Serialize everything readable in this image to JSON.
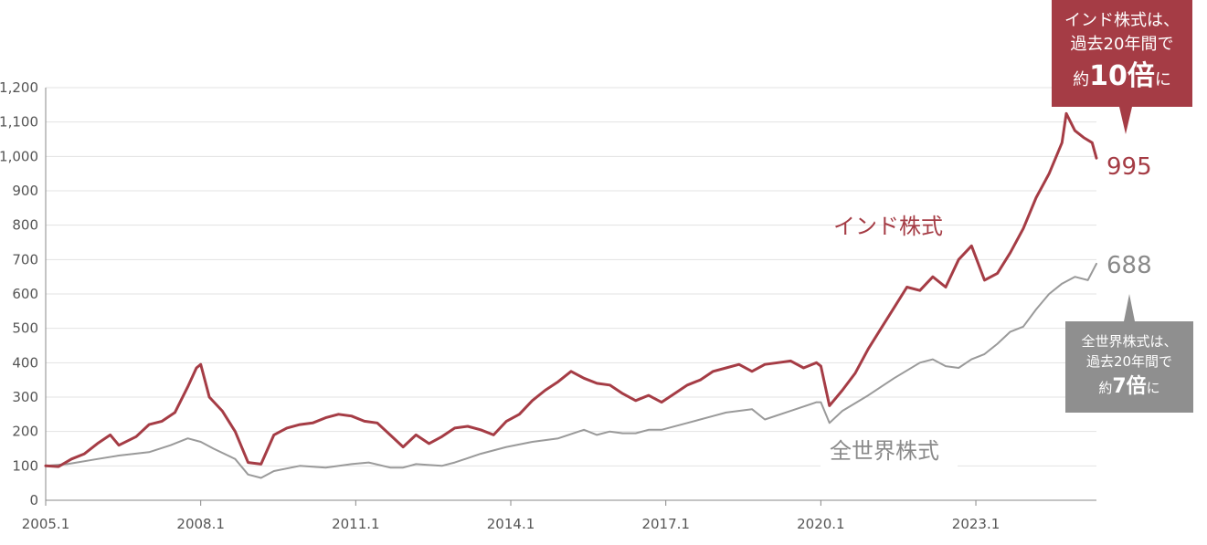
{
  "chart_data": {
    "type": "line",
    "ylim": [
      0,
      1200
    ],
    "y_ticks": [
      "0",
      "100",
      "200",
      "300",
      "400",
      "500",
      "600",
      "700",
      "800",
      "900",
      "1,000",
      "1,100",
      "1,200"
    ],
    "x_ticks": [
      "2005.1",
      "2008.1",
      "2011.1",
      "2014.1",
      "2017.1",
      "2020.1",
      "2023.1"
    ],
    "grid": "horizontal",
    "series": [
      {
        "name": "インド株式",
        "color": "#a53c45",
        "end_label": "995",
        "points": [
          [
            "2005.1",
            100
          ],
          [
            "2005.4",
            98
          ],
          [
            "2005.7",
            120
          ],
          [
            "2005.10",
            135
          ],
          [
            "2006.1",
            165
          ],
          [
            "2006.4",
            190
          ],
          [
            "2006.6",
            160
          ],
          [
            "2006.10",
            185
          ],
          [
            "2007.1",
            220
          ],
          [
            "2007.4",
            230
          ],
          [
            "2007.7",
            255
          ],
          [
            "2007.10",
            330
          ],
          [
            "2007.12",
            385
          ],
          [
            "2008.1",
            395
          ],
          [
            "2008.3",
            300
          ],
          [
            "2008.6",
            260
          ],
          [
            "2008.9",
            200
          ],
          [
            "2008.12",
            110
          ],
          [
            "2009.3",
            105
          ],
          [
            "2009.6",
            190
          ],
          [
            "2009.9",
            210
          ],
          [
            "2009.12",
            220
          ],
          [
            "2010.3",
            225
          ],
          [
            "2010.6",
            240
          ],
          [
            "2010.9",
            250
          ],
          [
            "2010.12",
            245
          ],
          [
            "2011.3",
            230
          ],
          [
            "2011.6",
            225
          ],
          [
            "2011.9",
            190
          ],
          [
            "2011.12",
            155
          ],
          [
            "2012.3",
            190
          ],
          [
            "2012.6",
            165
          ],
          [
            "2012.9",
            185
          ],
          [
            "2012.12",
            210
          ],
          [
            "2013.3",
            215
          ],
          [
            "2013.6",
            205
          ],
          [
            "2013.9",
            190
          ],
          [
            "2013.12",
            230
          ],
          [
            "2014.3",
            250
          ],
          [
            "2014.6",
            290
          ],
          [
            "2014.9",
            320
          ],
          [
            "2014.12",
            345
          ],
          [
            "2015.3",
            375
          ],
          [
            "2015.6",
            355
          ],
          [
            "2015.9",
            340
          ],
          [
            "2015.12",
            335
          ],
          [
            "2016.3",
            310
          ],
          [
            "2016.6",
            290
          ],
          [
            "2016.9",
            305
          ],
          [
            "2016.12",
            285
          ],
          [
            "2017.3",
            310
          ],
          [
            "2017.6",
            335
          ],
          [
            "2017.9",
            350
          ],
          [
            "2017.12",
            375
          ],
          [
            "2018.3",
            385
          ],
          [
            "2018.6",
            395
          ],
          [
            "2018.9",
            375
          ],
          [
            "2018.12",
            395
          ],
          [
            "2019.3",
            400
          ],
          [
            "2019.6",
            405
          ],
          [
            "2019.9",
            385
          ],
          [
            "2019.12",
            400
          ],
          [
            "2020.1",
            390
          ],
          [
            "2020.3",
            275
          ],
          [
            "2020.6",
            320
          ],
          [
            "2020.9",
            370
          ],
          [
            "2020.12",
            440
          ],
          [
            "2021.3",
            500
          ],
          [
            "2021.6",
            560
          ],
          [
            "2021.9",
            620
          ],
          [
            "2021.12",
            610
          ],
          [
            "2022.3",
            650
          ],
          [
            "2022.6",
            620
          ],
          [
            "2022.9",
            700
          ],
          [
            "2022.12",
            740
          ],
          [
            "2023.3",
            640
          ],
          [
            "2023.6",
            660
          ],
          [
            "2023.9",
            720
          ],
          [
            "2023.12",
            790
          ],
          [
            "2024.3",
            880
          ],
          [
            "2024.6",
            950
          ],
          [
            "2024.9",
            1040
          ],
          [
            "2024.10",
            1125
          ],
          [
            "2024.12",
            1075
          ],
          [
            "2025.2",
            1055
          ],
          [
            "2025.4",
            1040
          ],
          [
            "2025.5",
            995
          ]
        ]
      },
      {
        "name": "全世界株式",
        "color": "#9a9a9a",
        "end_label": "688",
        "points": [
          [
            "2005.1",
            100
          ],
          [
            "2005.6",
            105
          ],
          [
            "2006.1",
            120
          ],
          [
            "2006.6",
            130
          ],
          [
            "2007.1",
            140
          ],
          [
            "2007.6",
            160
          ],
          [
            "2007.10",
            180
          ],
          [
            "2008.1",
            170
          ],
          [
            "2008.4",
            150
          ],
          [
            "2008.9",
            120
          ],
          [
            "2008.12",
            75
          ],
          [
            "2009.3",
            65
          ],
          [
            "2009.6",
            85
          ],
          [
            "2009.12",
            100
          ],
          [
            "2010.6",
            95
          ],
          [
            "2010.12",
            105
          ],
          [
            "2011.4",
            110
          ],
          [
            "2011.9",
            95
          ],
          [
            "2011.12",
            95
          ],
          [
            "2012.3",
            105
          ],
          [
            "2012.9",
            100
          ],
          [
            "2012.12",
            110
          ],
          [
            "2013.6",
            135
          ],
          [
            "2013.12",
            155
          ],
          [
            "2014.6",
            170
          ],
          [
            "2014.12",
            180
          ],
          [
            "2015.6",
            205
          ],
          [
            "2015.9",
            190
          ],
          [
            "2015.12",
            200
          ],
          [
            "2016.3",
            195
          ],
          [
            "2016.6",
            195
          ],
          [
            "2016.9",
            205
          ],
          [
            "2016.12",
            205
          ],
          [
            "2017.6",
            225
          ],
          [
            "2017.12",
            245
          ],
          [
            "2018.3",
            255
          ],
          [
            "2018.9",
            265
          ],
          [
            "2018.12",
            235
          ],
          [
            "2019.6",
            260
          ],
          [
            "2019.12",
            285
          ],
          [
            "2020.1",
            285
          ],
          [
            "2020.3",
            225
          ],
          [
            "2020.6",
            260
          ],
          [
            "2020.12",
            305
          ],
          [
            "2021.6",
            355
          ],
          [
            "2021.12",
            400
          ],
          [
            "2022.3",
            410
          ],
          [
            "2022.6",
            390
          ],
          [
            "2022.9",
            385
          ],
          [
            "2022.12",
            410
          ],
          [
            "2023.3",
            425
          ],
          [
            "2023.6",
            455
          ],
          [
            "2023.9",
            490
          ],
          [
            "2023.12",
            505
          ],
          [
            "2024.3",
            555
          ],
          [
            "2024.6",
            600
          ],
          [
            "2024.9",
            630
          ],
          [
            "2024.12",
            650
          ],
          [
            "2025.3",
            640
          ],
          [
            "2025.5",
            688
          ]
        ]
      }
    ]
  },
  "labels": {
    "india_series": "インド株式",
    "world_series": "全世界株式",
    "india_end": "995",
    "world_end": "688"
  },
  "india_callout": {
    "line1": "インド株式は、",
    "line2": "過去20年間で",
    "prefix": "約",
    "big": "10倍",
    "suffix": "に"
  },
  "world_callout": {
    "line1": "全世界株式は、",
    "line2": "過去20年間で",
    "prefix": "約",
    "big": "7倍",
    "suffix": "に"
  }
}
